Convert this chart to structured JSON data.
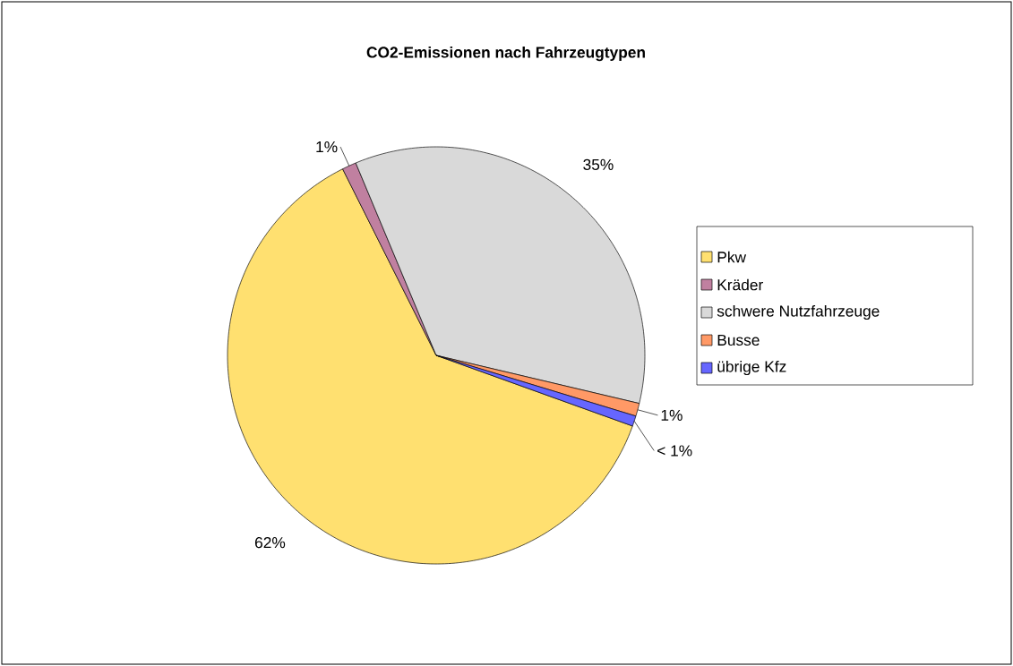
{
  "chart_data": {
    "type": "pie",
    "title": "CO2-Emissionen nach Fahrzeugtypen",
    "categories": [
      "Pkw",
      "Kräder",
      "schwere Nutzfahrzeuge",
      "Busse",
      "übrige Kfz"
    ],
    "values": [
      62.1,
      1.1,
      35.0,
      1.0,
      0.8
    ],
    "colors": [
      "#ffe070",
      "#c080a0",
      "#d9d9d9",
      "#ff9966",
      "#6666ff"
    ],
    "value_labels": [
      "62%",
      "1%",
      "35%",
      "1%",
      "< 1%"
    ],
    "legend": "right"
  }
}
